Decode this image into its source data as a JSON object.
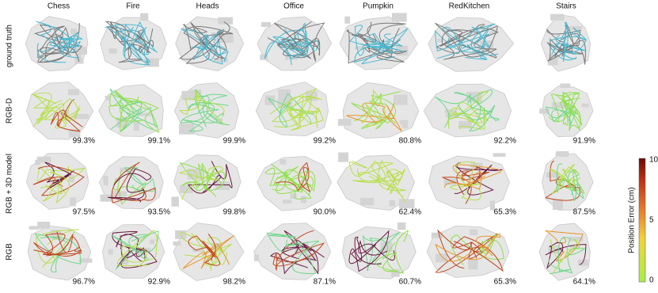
{
  "columns": [
    "Chess",
    "Fire",
    "Heads",
    "Office",
    "Pumpkin",
    "RedKitchen",
    "Stairs"
  ],
  "rows": [
    {
      "label": "ground truth"
    },
    {
      "label": "RGB-D",
      "accuracy": [
        "99.3%",
        "99.1%",
        "99.9%",
        "99.2%",
        "80.8%",
        "92.2%",
        "91.9%"
      ]
    },
    {
      "label": "RGB + 3D model",
      "accuracy": [
        "97.5%",
        "93.5%",
        "99.8%",
        "90.0%",
        "62.4%",
        "65.3%",
        "87.5%"
      ]
    },
    {
      "label": "RGB",
      "accuracy": [
        "96.7%",
        "92.9%",
        "98.2%",
        "87.1%",
        "60.7%",
        "65.3%",
        "64.1%"
      ]
    }
  ],
  "colorbar": {
    "label": "Position Error (cm)",
    "ticks": [
      "0",
      "5",
      "10"
    ]
  }
}
